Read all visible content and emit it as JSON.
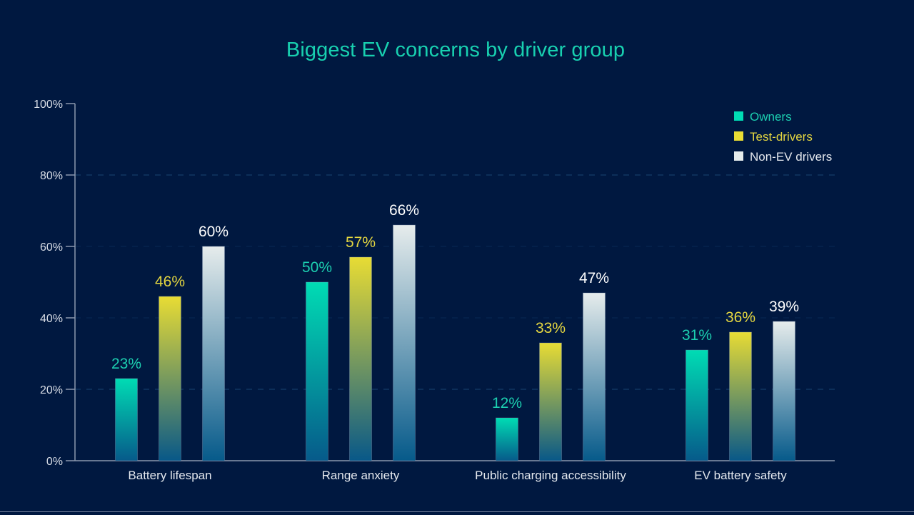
{
  "chart_data": {
    "type": "bar",
    "title": "Biggest EV concerns by driver group",
    "xlabel": "",
    "ylabel": "",
    "ylim": [
      0,
      100
    ],
    "yticks": [
      0,
      20,
      40,
      60,
      80,
      100
    ],
    "ytick_labels": [
      "0%",
      "20%",
      "40%",
      "60%",
      "80%",
      "100%"
    ],
    "grid": true,
    "legend_position": "top-right",
    "categories": [
      "Battery lifespan",
      "Range anxiety",
      "Public charging accessibility",
      "EV battery safety"
    ],
    "series": [
      {
        "name": "Owners",
        "values": [
          23,
          50,
          12,
          31
        ],
        "labels": [
          "23%",
          "50%",
          "12%",
          "31%"
        ],
        "color": "#00dcb4",
        "gradient_bottom": "#065a8a"
      },
      {
        "name": "Test-drivers",
        "values": [
          46,
          57,
          33,
          36
        ],
        "labels": [
          "46%",
          "57%",
          "33%",
          "36%"
        ],
        "color": "#e8dc34",
        "gradient_bottom": "#085888"
      },
      {
        "name": "Non-EV drivers",
        "values": [
          60,
          66,
          47,
          39
        ],
        "labels": [
          "60%",
          "66%",
          "47%",
          "39%"
        ],
        "color": "#e6ecec",
        "gradient_bottom": "#065a8a"
      }
    ],
    "label_colors": [
      "#1ccfb0",
      "#e4d640",
      "#ffffff"
    ]
  },
  "colors": {
    "background": "#001840",
    "title": "#18d0b0",
    "axis": "#8a97ad",
    "grid": "#1a4a78"
  }
}
